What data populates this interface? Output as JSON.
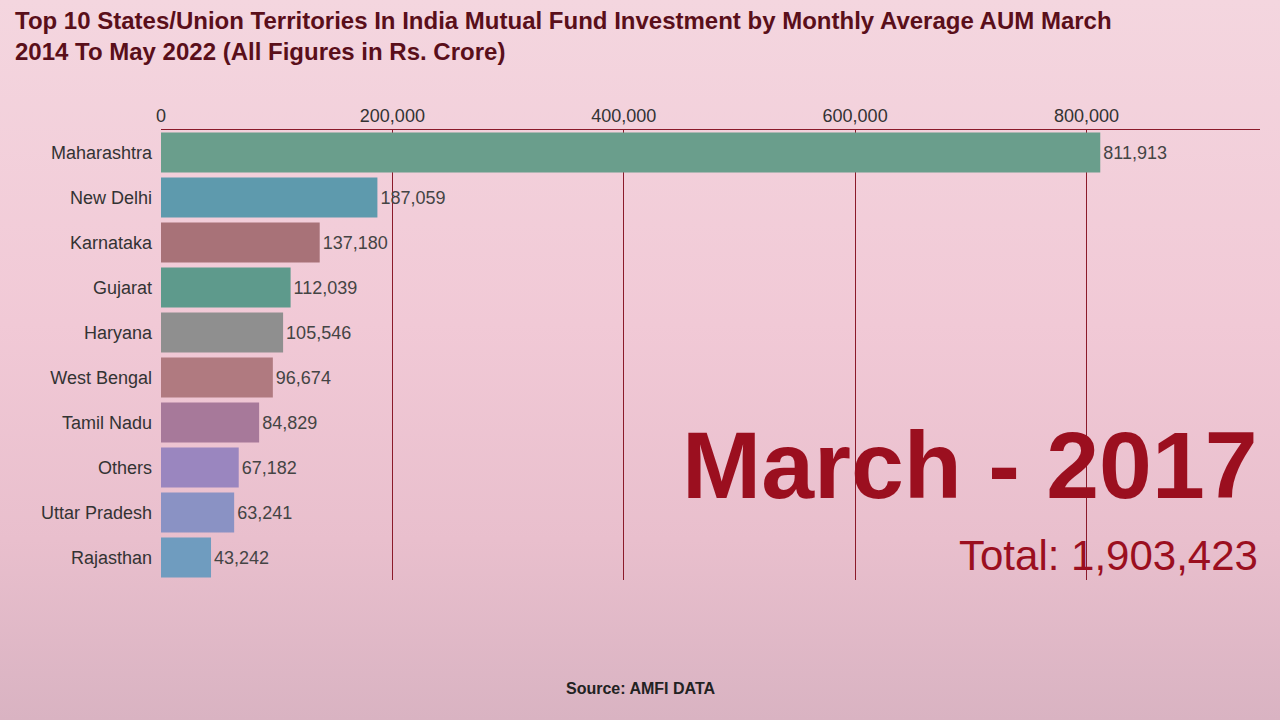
{
  "chart_data": {
    "type": "bar",
    "orientation": "horizontal",
    "title": "Top 10 States/Union Territories In India Mutual Fund Investment by Monthly Average AUM March 2014 To May 2022 (All Figures in Rs. Crore)",
    "categories": [
      "Maharashtra",
      "New Delhi",
      "Karnataka",
      "Gujarat",
      "Haryana",
      "West Bengal",
      "Tamil Nadu",
      "Others",
      "Uttar Pradesh",
      "Rajasthan"
    ],
    "values": [
      811913,
      187059,
      137180,
      112039,
      105546,
      96674,
      84829,
      67182,
      63241,
      43242
    ],
    "value_labels": [
      "811,913",
      "187,059",
      "137,180",
      "112,039",
      "105,546",
      "96,674",
      "84,829",
      "67,182",
      "63,241",
      "43,242"
    ],
    "colors": [
      "#6a9e8c",
      "#5e9aad",
      "#a87278",
      "#5e9a8c",
      "#8f8f8f",
      "#b07a80",
      "#a7799a",
      "#9a86bf",
      "#8a92c4",
      "#6f9cbf"
    ],
    "data_labels": true,
    "xlim": [
      0,
      950000
    ],
    "xticks": [
      0,
      {
        "value": 200000,
        "label": "200,000"
      },
      {
        "value": 400000,
        "label": "400,000"
      },
      {
        "value": 600000,
        "label": "600,000"
      },
      {
        "value": 800000,
        "label": "800,000"
      }
    ],
    "grid": true,
    "annotations": [
      "March - 2017",
      "Total: 1,903,423",
      "Source: AMFI DATA"
    ]
  }
}
